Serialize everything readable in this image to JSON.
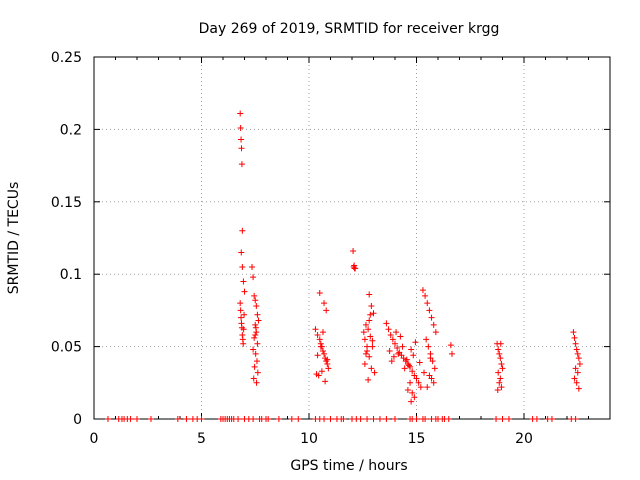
{
  "chart_data": {
    "type": "scatter",
    "title": "Day 269 of 2019, SRMTID for receiver krgg",
    "xlabel": "GPS time / hours",
    "ylabel": "SRMTID / TECUs",
    "xlim": [
      0,
      24
    ],
    "ylim": [
      0,
      0.25
    ],
    "x_ticks": [
      0,
      5,
      10,
      15,
      20
    ],
    "x_tick_labels": [
      "0",
      "5",
      "10",
      "15",
      "20"
    ],
    "y_ticks": [
      0,
      0.05,
      0.1,
      0.15,
      0.2,
      0.25
    ],
    "y_tick_labels": [
      "0",
      "0.05",
      "0.1",
      "0.15",
      "0.2",
      "0.25"
    ],
    "grid": true,
    "marker": "+",
    "series": [
      {
        "name": "SRMTID",
        "color": "#ff0000",
        "x": [
          0.65,
          1.15,
          1.3,
          1.4,
          1.55,
          1.7,
          2.0,
          2.65,
          3.9,
          4.3,
          4.6,
          4.8,
          5.0,
          5.9,
          6.0,
          6.1,
          6.2,
          6.3,
          6.4,
          6.5,
          6.7,
          7.0,
          7.2,
          7.4,
          7.7,
          7.8,
          8.0,
          8.1,
          8.6,
          9.2,
          9.5,
          10.3,
          10.5,
          10.7,
          11.0,
          11.3,
          11.5,
          11.6,
          12.0,
          12.2,
          12.4,
          12.7,
          13.0,
          13.3,
          13.6,
          14.0,
          14.7,
          14.8,
          15.0,
          15.3,
          15.4,
          15.7,
          15.9,
          16.0,
          16.2,
          16.3,
          16.5,
          18.7,
          19.0,
          19.3,
          20.4,
          20.6,
          21.1,
          21.3,
          22.2,
          22.4,
          6.8,
          6.82,
          6.84,
          6.86,
          6.88,
          6.9,
          6.85,
          6.9,
          6.95,
          7.0,
          6.8,
          6.82,
          6.84,
          6.86,
          6.88,
          6.9,
          6.92,
          6.94,
          6.96,
          6.98,
          7.35,
          7.4,
          7.45,
          7.5,
          7.55,
          7.6,
          7.65,
          7.5,
          7.55,
          7.45,
          7.6,
          7.4,
          7.52,
          7.58,
          7.47,
          7.62,
          7.43,
          7.56,
          7.5,
          7.53,
          10.3,
          10.4,
          10.5,
          10.55,
          10.6,
          10.65,
          10.7,
          10.75,
          10.8,
          10.85,
          10.9,
          10.45,
          10.6,
          10.7,
          10.5,
          10.8,
          10.65,
          10.4,
          10.75,
          10.55,
          10.85,
          10.35,
          12.05,
          12.1,
          12.15,
          12.12,
          12.08,
          12.55,
          12.6,
          12.7,
          12.8,
          12.9,
          13.0,
          12.65,
          12.75,
          12.85,
          12.95,
          12.7,
          12.8,
          12.6,
          12.9,
          13.05,
          12.75,
          12.85,
          12.65,
          12.95,
          12.8,
          13.6,
          13.7,
          13.8,
          13.9,
          14.0,
          14.1,
          14.2,
          14.3,
          14.4,
          14.5,
          14.6,
          14.7,
          14.8,
          14.9,
          15.0,
          15.1,
          15.2,
          13.75,
          13.95,
          14.15,
          14.35,
          14.55,
          14.75,
          14.95,
          15.15,
          14.05,
          14.25,
          14.45,
          14.65,
          14.85,
          13.85,
          14.6,
          14.7,
          14.8,
          14.9,
          14.75,
          15.3,
          15.4,
          15.5,
          15.6,
          15.7,
          15.8,
          15.9,
          15.45,
          15.55,
          15.65,
          15.75,
          15.85,
          15.35,
          15.6,
          15.7,
          15.8,
          15.5,
          15.65,
          16.6,
          16.65,
          18.75,
          18.8,
          18.85,
          18.9,
          18.95,
          19.0,
          18.8,
          18.9,
          18.85,
          18.95,
          18.78,
          18.92,
          22.3,
          22.35,
          22.4,
          22.45,
          22.5,
          22.55,
          22.6,
          22.4,
          22.5,
          22.35,
          22.45,
          22.55
        ],
        "y": [
          0,
          0,
          0,
          0,
          0,
          0,
          0,
          0,
          0,
          0,
          0,
          0,
          0,
          0,
          0,
          0,
          0,
          0,
          0,
          0,
          0,
          0,
          0,
          0,
          0,
          0,
          0,
          0,
          0,
          0,
          0,
          0,
          0,
          0,
          0,
          0,
          0,
          0,
          0,
          0,
          0,
          0,
          0,
          0,
          0,
          0,
          0,
          0,
          0,
          0,
          0,
          0,
          0,
          0,
          0,
          0,
          0,
          0,
          0,
          0,
          0,
          0,
          0,
          0,
          0,
          0,
          0.211,
          0.201,
          0.193,
          0.187,
          0.176,
          0.13,
          0.115,
          0.105,
          0.095,
          0.088,
          0.08,
          0.075,
          0.07,
          0.066,
          0.063,
          0.058,
          0.055,
          0.052,
          0.062,
          0.072,
          0.105,
          0.098,
          0.085,
          0.082,
          0.078,
          0.072,
          0.068,
          0.065,
          0.06,
          0.056,
          0.052,
          0.048,
          0.045,
          0.04,
          0.036,
          0.032,
          0.028,
          0.025,
          0.058,
          0.063,
          0.062,
          0.058,
          0.055,
          0.052,
          0.05,
          0.047,
          0.045,
          0.042,
          0.04,
          0.038,
          0.035,
          0.03,
          0.033,
          0.08,
          0.087,
          0.075,
          0.06,
          0.044,
          0.026,
          0.05,
          0.041,
          0.031,
          0.116,
          0.106,
          0.104,
          0.104,
          0.105,
          0.06,
          0.055,
          0.05,
          0.086,
          0.078,
          0.073,
          0.065,
          0.062,
          0.057,
          0.054,
          0.047,
          0.043,
          0.038,
          0.035,
          0.032,
          0.027,
          0.072,
          0.045,
          0.05,
          0.068,
          0.066,
          0.062,
          0.058,
          0.055,
          0.052,
          0.049,
          0.046,
          0.044,
          0.042,
          0.04,
          0.038,
          0.036,
          0.033,
          0.03,
          0.028,
          0.025,
          0.022,
          0.047,
          0.043,
          0.045,
          0.05,
          0.041,
          0.048,
          0.053,
          0.039,
          0.06,
          0.057,
          0.035,
          0.037,
          0.044,
          0.04,
          0.02,
          0.025,
          0.018,
          0.015,
          0.012,
          0.089,
          0.085,
          0.08,
          0.075,
          0.07,
          0.065,
          0.06,
          0.055,
          0.05,
          0.045,
          0.04,
          0.035,
          0.032,
          0.03,
          0.028,
          0.025,
          0.022,
          0.042,
          0.051,
          0.045,
          0.052,
          0.048,
          0.045,
          0.042,
          0.038,
          0.035,
          0.032,
          0.028,
          0.025,
          0.022,
          0.02,
          0.052,
          0.06,
          0.056,
          0.052,
          0.048,
          0.045,
          0.042,
          0.038,
          0.035,
          0.032,
          0.028,
          0.025,
          0.021
        ]
      }
    ]
  }
}
